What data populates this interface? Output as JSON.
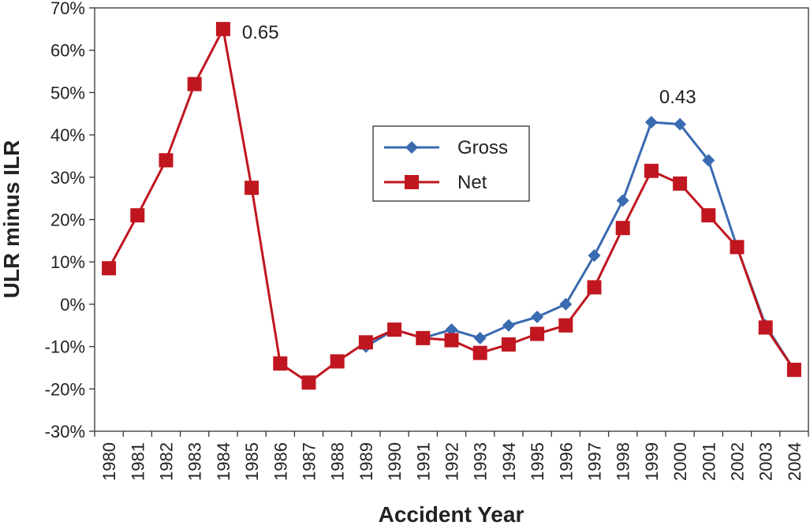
{
  "chart_data": {
    "type": "line",
    "title": "",
    "xlabel": "Accident Year",
    "ylabel": "ULR minus ILR",
    "categories": [
      "1980",
      "1981",
      "1982",
      "1983",
      "1984",
      "1985",
      "1986",
      "1987",
      "1988",
      "1989",
      "1990",
      "1991",
      "1992",
      "1993",
      "1994",
      "1995",
      "1996",
      "1997",
      "1998",
      "1999",
      "2000",
      "2001",
      "2002",
      "2003",
      "2004"
    ],
    "ylim": [
      -0.3,
      0.7
    ],
    "yticks": [
      -0.3,
      -0.2,
      -0.1,
      0.0,
      0.1,
      0.2,
      0.3,
      0.4,
      0.5,
      0.6,
      0.7
    ],
    "ytick_labels": [
      "-30%",
      "-20%",
      "-10%",
      "0%",
      "10%",
      "20%",
      "30%",
      "40%",
      "50%",
      "60%",
      "70%"
    ],
    "y_format": "percent",
    "grid": false,
    "legend_position": "center-right",
    "series": [
      {
        "name": "Gross",
        "color": "#3a6ab0",
        "marker": "diamond",
        "values": [
          null,
          null,
          null,
          null,
          null,
          null,
          null,
          null,
          null,
          -0.1,
          -0.06,
          -0.08,
          -0.06,
          -0.08,
          -0.05,
          -0.03,
          0.0,
          0.115,
          0.245,
          0.43,
          0.425,
          0.34,
          0.135,
          -0.05,
          -0.155
        ]
      },
      {
        "name": "Net",
        "color": "#c0161f",
        "marker": "square",
        "values": [
          0.085,
          0.21,
          0.34,
          0.52,
          0.65,
          0.275,
          -0.14,
          -0.185,
          -0.135,
          -0.09,
          -0.06,
          -0.08,
          -0.085,
          -0.115,
          -0.095,
          -0.07,
          -0.05,
          0.04,
          0.18,
          0.315,
          0.285,
          0.21,
          0.135,
          -0.055,
          -0.155
        ]
      }
    ],
    "annotations": [
      {
        "text": "0.65",
        "category": "1984",
        "value": 0.65
      },
      {
        "text": "0.43",
        "category": "1999",
        "value": 0.43
      }
    ]
  }
}
